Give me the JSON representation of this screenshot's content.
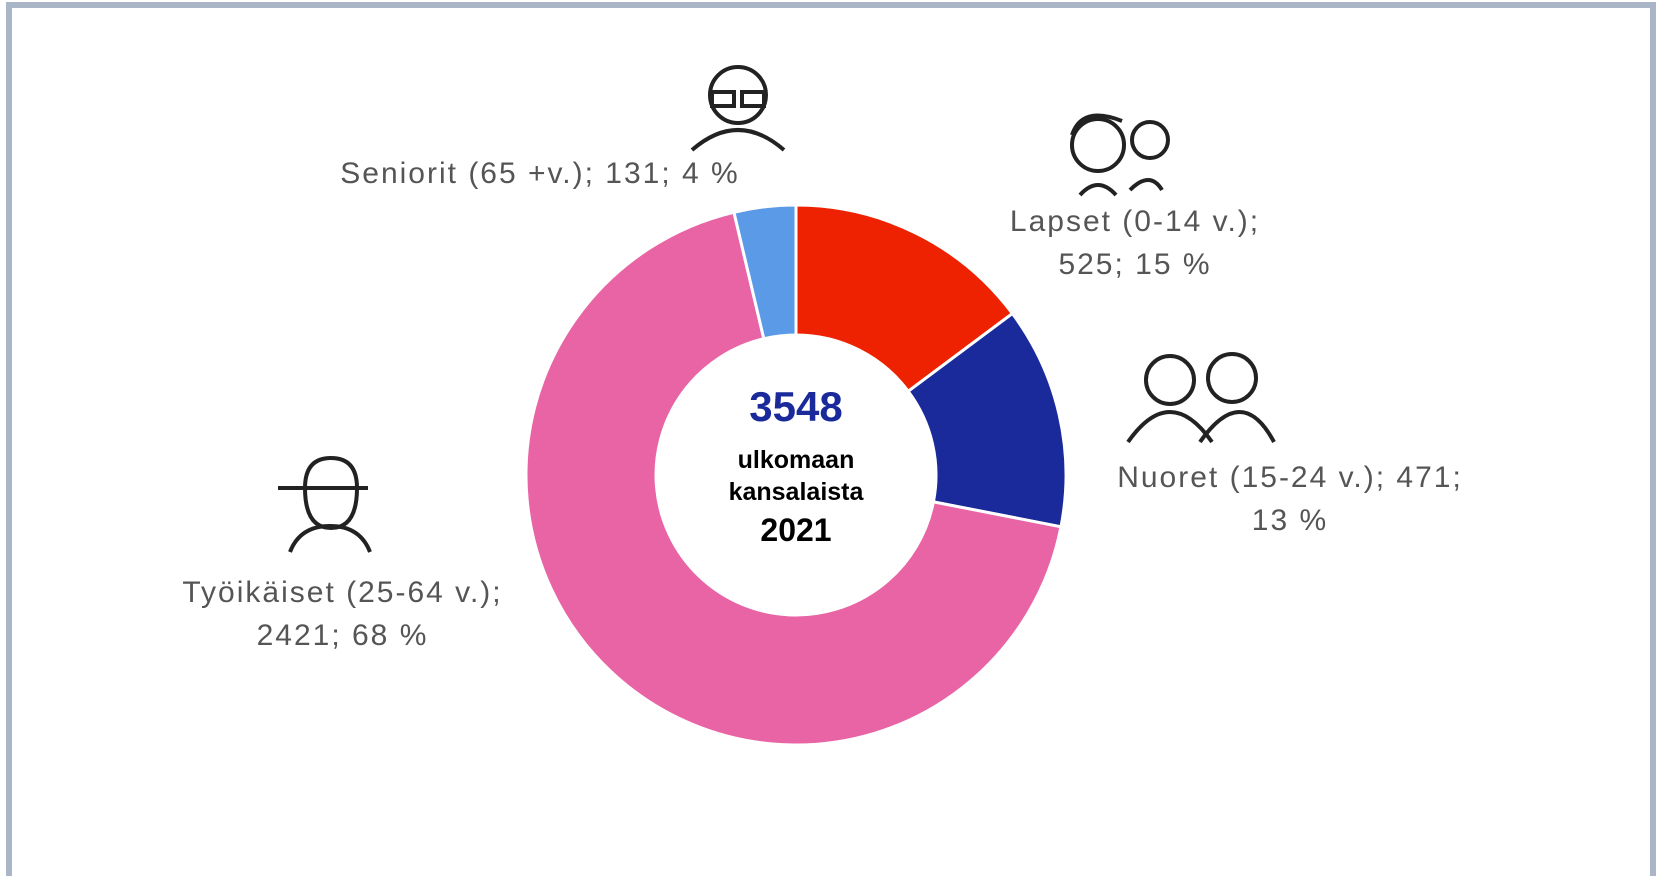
{
  "chart_data": {
    "type": "donut",
    "value_labels": [
      "Lapset (0-14 v.); 525; 15 %",
      "Nuoret (15-24 v.); 471; 13 %",
      "Työikäiset (25-64 v.); 2421; 68 %",
      "Seniorit (65 +v.); 131; 4 %"
    ],
    "values": [
      525,
      471,
      2421,
      131
    ],
    "colors": [
      "#ee2200",
      "#1a2a9a",
      "#e864a4",
      "#5b9ae6"
    ],
    "center_total": "3548",
    "center_text": "ulkomaan kansalaista",
    "center_year": "2021"
  }
}
